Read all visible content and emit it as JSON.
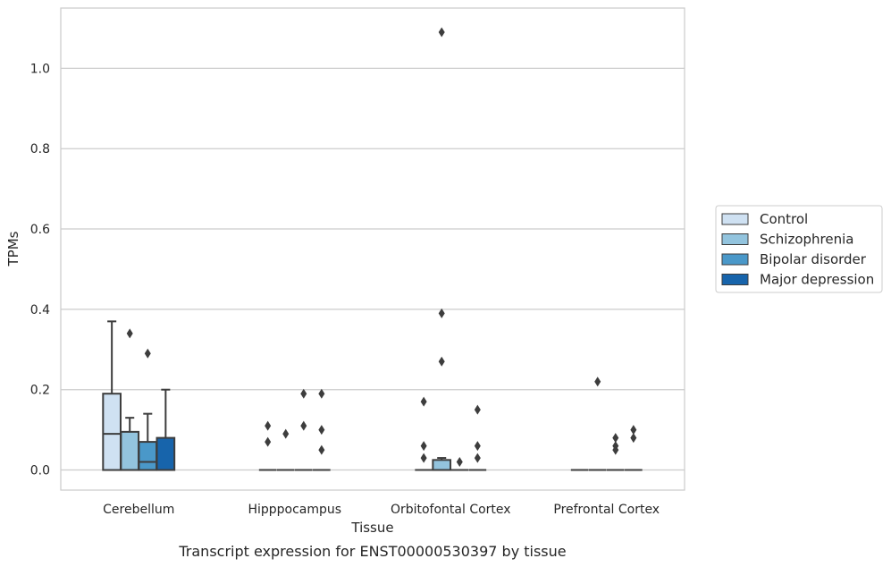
{
  "chart_data": {
    "type": "box",
    "title": "",
    "caption": "Transcript expression for ENST00000530397 by tissue",
    "xlabel": "Tissue",
    "ylabel": "TPMs",
    "ylim": [
      -0.05,
      1.15
    ],
    "yticks": [
      0.0,
      0.2,
      0.4,
      0.6,
      0.8,
      1.0
    ],
    "grid": "horizontal",
    "legend_position": "outside-right",
    "categories": [
      "Cerebellum",
      "Hipppocampus",
      "Orbitofontal Cortex",
      "Prefrontal Cortex"
    ],
    "series": [
      {
        "name": "Control",
        "color": "#cfe1f2",
        "boxes": [
          {
            "q1": 0.0,
            "median": 0.09,
            "q3": 0.19,
            "whisker_low": 0.0,
            "whisker_high": 0.37,
            "outliers": []
          },
          {
            "q1": 0.0,
            "median": 0.0,
            "q3": 0.0,
            "whisker_low": 0.0,
            "whisker_high": 0.0,
            "outliers": [
              0.11,
              0.07
            ]
          },
          {
            "q1": 0.0,
            "median": 0.0,
            "q3": 0.0,
            "whisker_low": 0.0,
            "whisker_high": 0.0,
            "outliers": [
              0.17,
              0.06,
              0.03
            ]
          },
          {
            "q1": 0.0,
            "median": 0.0,
            "q3": 0.0,
            "whisker_low": 0.0,
            "whisker_high": 0.0,
            "outliers": []
          }
        ]
      },
      {
        "name": "Schizophrenia",
        "color": "#93c4de",
        "boxes": [
          {
            "q1": 0.0,
            "median": 0.0,
            "q3": 0.095,
            "whisker_low": 0.0,
            "whisker_high": 0.13,
            "outliers": [
              0.34
            ]
          },
          {
            "q1": 0.0,
            "median": 0.0,
            "q3": 0.0,
            "whisker_low": 0.0,
            "whisker_high": 0.0,
            "outliers": [
              0.09
            ]
          },
          {
            "q1": 0.0,
            "median": 0.0,
            "q3": 0.025,
            "whisker_low": 0.0,
            "whisker_high": 0.03,
            "outliers": [
              1.09,
              0.39,
              0.27
            ]
          },
          {
            "q1": 0.0,
            "median": 0.0,
            "q3": 0.0,
            "whisker_low": 0.0,
            "whisker_high": 0.0,
            "outliers": [
              0.22
            ]
          }
        ]
      },
      {
        "name": "Bipolar disorder",
        "color": "#4a98c9",
        "boxes": [
          {
            "q1": 0.0,
            "median": 0.02,
            "q3": 0.07,
            "whisker_low": 0.0,
            "whisker_high": 0.14,
            "outliers": [
              0.29
            ]
          },
          {
            "q1": 0.0,
            "median": 0.0,
            "q3": 0.0,
            "whisker_low": 0.0,
            "whisker_high": 0.0,
            "outliers": [
              0.19,
              0.11
            ]
          },
          {
            "q1": 0.0,
            "median": 0.0,
            "q3": 0.0,
            "whisker_low": 0.0,
            "whisker_high": 0.0,
            "outliers": [
              0.02
            ]
          },
          {
            "q1": 0.0,
            "median": 0.0,
            "q3": 0.0,
            "whisker_low": 0.0,
            "whisker_high": 0.0,
            "outliers": [
              0.08,
              0.06,
              0.05
            ]
          }
        ]
      },
      {
        "name": "Major depression",
        "color": "#1764ab",
        "boxes": [
          {
            "q1": 0.0,
            "median": 0.0,
            "q3": 0.08,
            "whisker_low": 0.0,
            "whisker_high": 0.2,
            "outliers": []
          },
          {
            "q1": 0.0,
            "median": 0.0,
            "q3": 0.0,
            "whisker_low": 0.0,
            "whisker_high": 0.0,
            "outliers": [
              0.19,
              0.1,
              0.05
            ]
          },
          {
            "q1": 0.0,
            "median": 0.0,
            "q3": 0.0,
            "whisker_low": 0.0,
            "whisker_high": 0.0,
            "outliers": [
              0.15,
              0.06,
              0.03
            ]
          },
          {
            "q1": 0.0,
            "median": 0.0,
            "q3": 0.0,
            "whisker_low": 0.0,
            "whisker_high": 0.0,
            "outliers": [
              0.1,
              0.08
            ]
          }
        ]
      }
    ]
  }
}
